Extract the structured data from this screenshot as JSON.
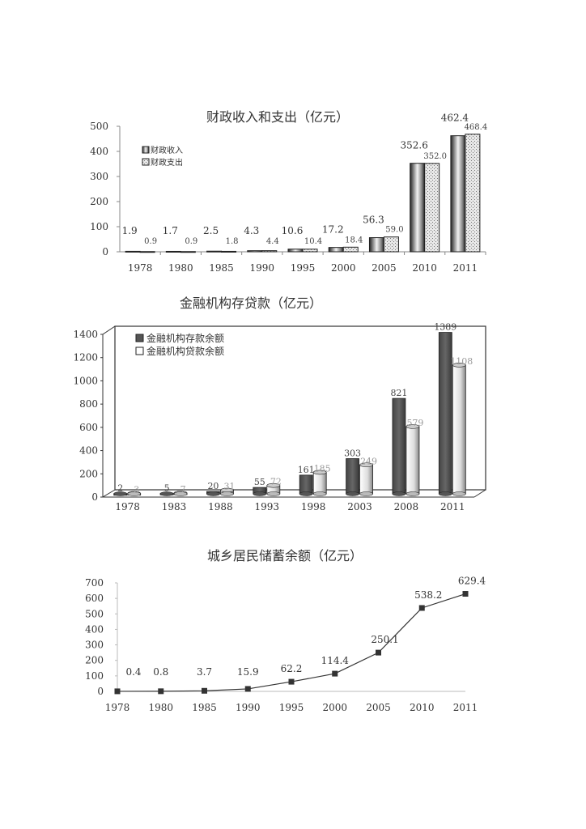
{
  "chart_data": [
    {
      "type": "bar",
      "title": "财政收入和支出（亿元）",
      "xlabel": "",
      "ylabel": "",
      "ylim": [
        0,
        500
      ],
      "yticks": [
        0,
        100,
        200,
        300,
        400,
        500
      ],
      "grid": false,
      "legend_position": "upper-left-inside",
      "categories": [
        "1978",
        "1980",
        "1985",
        "1990",
        "1995",
        "2000",
        "2005",
        "2010",
        "2011"
      ],
      "series": [
        {
          "name": "财政收入",
          "values": [
            1.9,
            1.7,
            2.5,
            4.3,
            10.6,
            17.2,
            56.3,
            352.6,
            462.4
          ],
          "labels": [
            "1.9",
            "1.7",
            "2.5",
            "4.3",
            "10.6",
            "17.2",
            "56.3",
            "352.6",
            "462.4"
          ]
        },
        {
          "name": "财政支出",
          "values": [
            0.9,
            0.9,
            1.8,
            4.4,
            10.4,
            18.4,
            59.0,
            352.0,
            468.4
          ],
          "labels": [
            "0.9",
            "0.9",
            "1.8",
            "4.4",
            "10.4",
            "18.4",
            "59.0",
            "352.0",
            "468.4"
          ]
        }
      ]
    },
    {
      "type": "bar",
      "title": "金融机构存贷款（亿元）",
      "xlabel": "",
      "ylabel": "",
      "ylim": [
        0,
        1400
      ],
      "yticks": [
        0,
        200,
        400,
        600,
        800,
        1000,
        1200,
        1400
      ],
      "grid": false,
      "legend_position": "upper-left-inside",
      "style": "3d-cylinder",
      "categories": [
        "1978",
        "1983",
        "1988",
        "1993",
        "1998",
        "2003",
        "2008",
        "2011"
      ],
      "series": [
        {
          "name": "金融机构存款余额",
          "values": [
            2,
            5,
            20,
            55,
            161,
            303,
            821,
            1389
          ],
          "labels": [
            "2",
            "5",
            "20",
            "55",
            "161",
            "303",
            "821",
            "1389"
          ]
        },
        {
          "name": "金融机构贷款余额",
          "values": [
            3,
            7,
            31,
            72,
            185,
            249,
            579,
            1108
          ],
          "labels": [
            "3",
            "7",
            "31",
            "72",
            "185",
            "249",
            "579",
            "1108"
          ]
        }
      ]
    },
    {
      "type": "line",
      "title": "城乡居民储蓄余额（亿元）",
      "xlabel": "",
      "ylabel": "",
      "ylim": [
        0,
        700
      ],
      "yticks": [
        0,
        100,
        200,
        300,
        400,
        500,
        600,
        700
      ],
      "grid": false,
      "marker": "square",
      "categories": [
        "1978",
        "1980",
        "1985",
        "1990",
        "1995",
        "2000",
        "2005",
        "2010",
        "2011"
      ],
      "series": [
        {
          "name": "城乡居民储蓄余额",
          "values": [
            0.4,
            0.8,
            3.7,
            15.9,
            62.2,
            114.4,
            250.1,
            538.2,
            629.4
          ],
          "labels": [
            "0.4",
            "0.8",
            "3.7",
            "15.9",
            "62.2",
            "114.4",
            "250.1",
            "538.2",
            "629.4"
          ]
        }
      ]
    }
  ]
}
